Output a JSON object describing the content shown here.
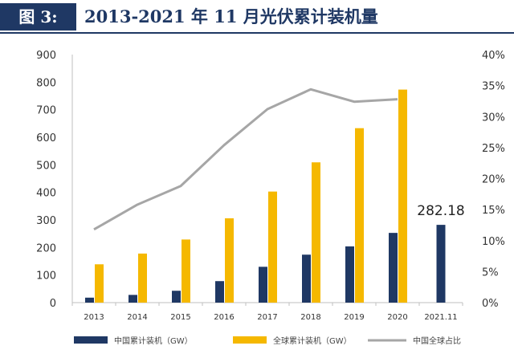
{
  "header": {
    "figure_label": "图 3:",
    "title": "2013-2021 年 11 月光伏累计装机量"
  },
  "chart_data": {
    "type": "bar",
    "categories": [
      "2013",
      "2014",
      "2015",
      "2016",
      "2017",
      "2018",
      "2019",
      "2020",
      "2021.11"
    ],
    "series": [
      {
        "name": "中国累计装机（GW）",
        "type": "bar",
        "axis": "left",
        "color": "#1f3864",
        "values": [
          18,
          28,
          43,
          78,
          130,
          174,
          204,
          253,
          282.18
        ]
      },
      {
        "name": "全球累计装机（GW）",
        "type": "bar",
        "axis": "left",
        "color": "#f5b800",
        "values": [
          139,
          178,
          229,
          306,
          403,
          509,
          633,
          773,
          null
        ]
      },
      {
        "name": "中国全球占比",
        "type": "line",
        "axis": "right",
        "color": "#a6a6a6",
        "values": [
          0.118,
          0.158,
          0.188,
          0.254,
          0.312,
          0.344,
          0.324,
          0.328,
          null
        ]
      }
    ],
    "y_left": {
      "min": 0,
      "max": 900,
      "ticks": [
        0,
        100,
        200,
        300,
        400,
        500,
        600,
        700,
        800,
        900
      ]
    },
    "y_right": {
      "min": 0,
      "max": 0.4,
      "ticks": [
        "0%",
        "5%",
        "10%",
        "15%",
        "20%",
        "25%",
        "30%",
        "35%",
        "40%"
      ]
    },
    "annotations": [
      {
        "category": "2021.11",
        "text": "282.18"
      }
    ],
    "legend": "bottom",
    "grid": false
  }
}
